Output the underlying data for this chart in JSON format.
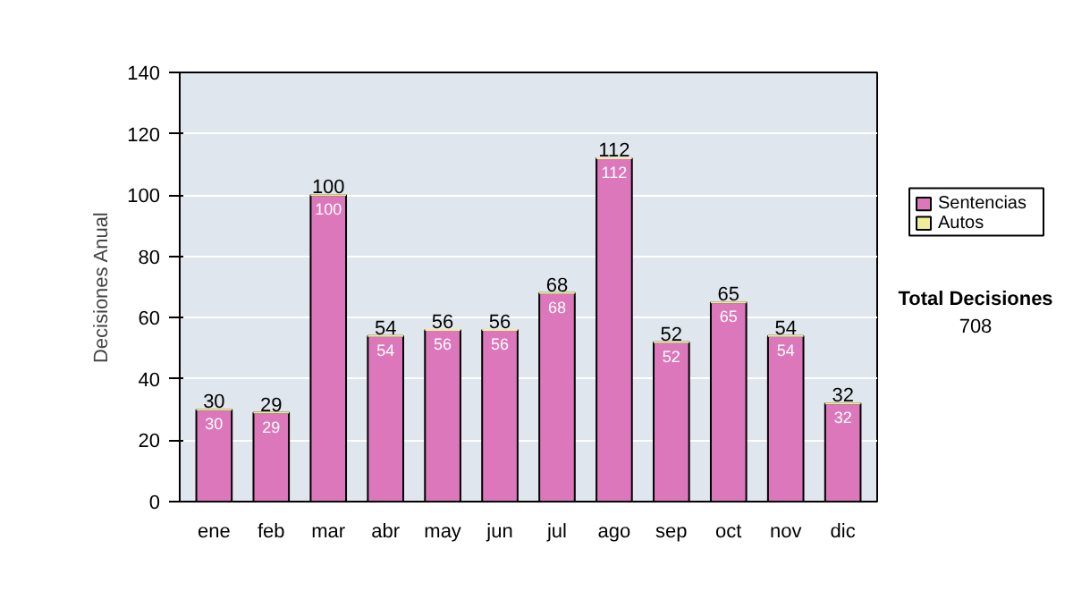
{
  "chart_data": {
    "type": "bar",
    "stacked": true,
    "ylabel": "Decisiones Anual",
    "categories": [
      "ene",
      "feb",
      "mar",
      "abr",
      "may",
      "jun",
      "jul",
      "ago",
      "sep",
      "oct",
      "nov",
      "dic"
    ],
    "series": [
      {
        "name": "Sentencias",
        "color": "#dd77bb",
        "values": [
          30,
          29,
          100,
          54,
          56,
          56,
          68,
          112,
          52,
          65,
          54,
          32
        ],
        "value_labels": [
          "30",
          "29",
          "100",
          "54",
          "56",
          "56",
          "68",
          "112",
          "52",
          "65",
          "54",
          "32"
        ]
      },
      {
        "name": "Autos",
        "color": "#eeee99",
        "values": [
          0,
          0,
          0,
          0,
          0,
          0,
          0,
          0,
          0,
          0,
          0,
          0
        ]
      }
    ],
    "totals": [
      "30",
      "29",
      "100",
      "54",
      "56",
      "56",
      "68",
      "112",
      "52",
      "65",
      "54",
      "32"
    ],
    "ylim": [
      0,
      140
    ],
    "yticks": [
      0,
      20,
      40,
      60,
      80,
      100,
      120,
      140
    ],
    "grid": "y",
    "legend": "right",
    "annotations": [
      "Total Decisiones",
      "708"
    ]
  }
}
